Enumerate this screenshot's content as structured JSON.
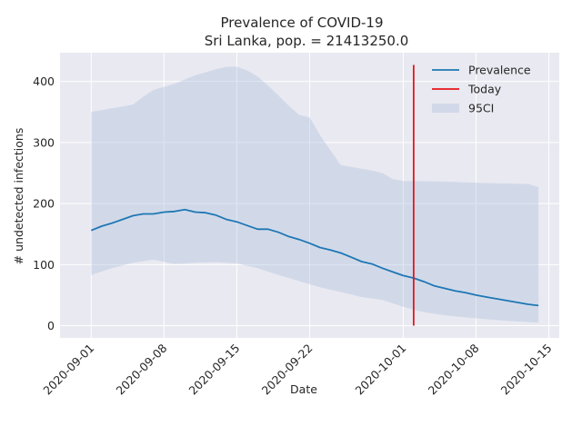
{
  "chart_data": {
    "type": "line",
    "title": "Prevalence of COVID-19",
    "subtitle": "Sri Lanka, pop. = 21413250.0",
    "xlabel": "Date",
    "ylabel": "# undetected infections",
    "x_ticks": [
      "2020-09-01",
      "2020-09-08",
      "2020-09-15",
      "2020-09-22",
      "2020-10-01",
      "2020-10-08",
      "2020-10-15"
    ],
    "y_ticks": [
      "0",
      "100",
      "200",
      "300",
      "400"
    ],
    "ylim": [
      -20,
      447
    ],
    "xlim": [
      "2020-08-29",
      "2020-10-16"
    ],
    "grid": true,
    "legend_position": "top-right",
    "colors": {
      "prevalence": "#1f77b4",
      "today": "#e8141c",
      "ci": "#b0c4de",
      "background": "#e9e9f1",
      "grid": "#ffffff"
    },
    "today": {
      "date": "2020-10-02",
      "ymin": 0,
      "ymax": 427
    },
    "series": [
      {
        "name": "Prevalence",
        "x": [
          "2020-09-01",
          "2020-09-02",
          "2020-09-03",
          "2020-09-04",
          "2020-09-05",
          "2020-09-06",
          "2020-09-07",
          "2020-09-08",
          "2020-09-09",
          "2020-09-10",
          "2020-09-11",
          "2020-09-12",
          "2020-09-13",
          "2020-09-14",
          "2020-09-15",
          "2020-09-16",
          "2020-09-17",
          "2020-09-18",
          "2020-09-19",
          "2020-09-20",
          "2020-09-21",
          "2020-09-22",
          "2020-09-23",
          "2020-09-24",
          "2020-09-25",
          "2020-09-26",
          "2020-09-27",
          "2020-09-28",
          "2020-09-29",
          "2020-09-30",
          "2020-10-01",
          "2020-10-02",
          "2020-10-03",
          "2020-10-04",
          "2020-10-05",
          "2020-10-06",
          "2020-10-07",
          "2020-10-08",
          "2020-10-09",
          "2020-10-10",
          "2020-10-11",
          "2020-10-12",
          "2020-10-13",
          "2020-10-14"
        ],
        "values": [
          156,
          163,
          168,
          174,
          180,
          183,
          183,
          186,
          187,
          190,
          186,
          185,
          181,
          174,
          170,
          164,
          158,
          158,
          153,
          146,
          141,
          135,
          128,
          124,
          119,
          112,
          105,
          101,
          94,
          88,
          82,
          78,
          72,
          65,
          61,
          57,
          54,
          50,
          47,
          44,
          41,
          38,
          35,
          33
        ]
      },
      {
        "name": "95CI",
        "x": [
          "2020-09-01",
          "2020-09-05",
          "2020-09-06",
          "2020-09-07",
          "2020-09-09",
          "2020-09-11",
          "2020-09-13",
          "2020-09-14",
          "2020-09-15",
          "2020-09-16",
          "2020-09-17",
          "2020-09-18",
          "2020-09-19",
          "2020-09-20",
          "2020-09-21",
          "2020-09-22",
          "2020-09-23",
          "2020-09-24",
          "2020-09-25",
          "2020-09-26",
          "2020-09-27",
          "2020-09-28",
          "2020-09-29",
          "2020-09-30",
          "2020-10-01",
          "2020-10-02",
          "2020-10-05",
          "2020-10-08",
          "2020-10-13",
          "2020-10-14"
        ],
        "upper": [
          350,
          362,
          375,
          386,
          396,
          410,
          420,
          424,
          424,
          418,
          408,
          393,
          377,
          360,
          345,
          341,
          312,
          287,
          263,
          260,
          257,
          254,
          250,
          240,
          237,
          237,
          236,
          234,
          232,
          227
        ],
        "x_lower": [
          "2020-09-01",
          "2020-09-03",
          "2020-09-05",
          "2020-09-07",
          "2020-09-09",
          "2020-09-11",
          "2020-09-13",
          "2020-09-15",
          "2020-09-17",
          "2020-09-19",
          "2020-09-21",
          "2020-09-23",
          "2020-09-25",
          "2020-09-27",
          "2020-09-29",
          "2020-10-01",
          "2020-10-03",
          "2020-10-05",
          "2020-10-08",
          "2020-10-11",
          "2020-10-14"
        ],
        "lower": [
          83,
          94,
          103,
          108,
          101,
          103,
          104,
          102,
          94,
          83,
          73,
          63,
          55,
          47,
          42,
          31,
          22,
          17,
          12,
          8,
          5
        ]
      }
    ],
    "legend": [
      {
        "label": "Prevalence",
        "kind": "line",
        "color": "#1f77b4"
      },
      {
        "label": "Today",
        "kind": "line",
        "color": "#e8141c"
      },
      {
        "label": "95CI",
        "kind": "patch",
        "color": "#b0c4de"
      }
    ]
  }
}
